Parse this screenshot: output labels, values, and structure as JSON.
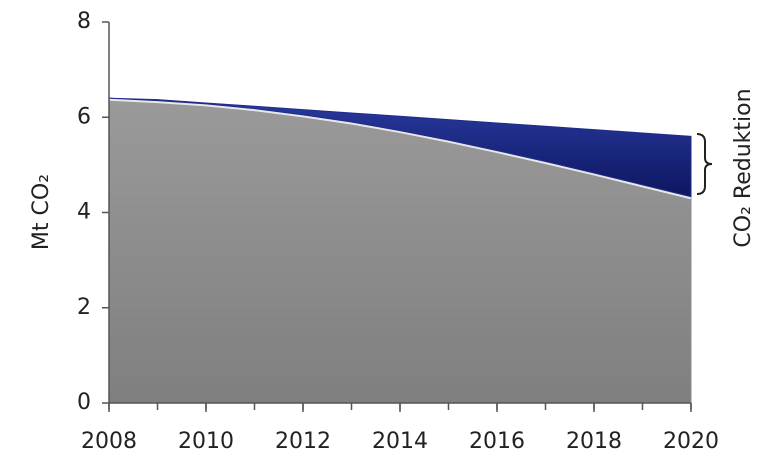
{
  "chart_data": {
    "type": "area",
    "stacked": true,
    "ylabel": "Mt CO₂",
    "annotation": "CO₂ Reduktion",
    "x": [
      2008,
      2009,
      2010,
      2011,
      2012,
      2013,
      2014,
      2015,
      2016,
      2017,
      2018,
      2019,
      2020
    ],
    "xlim": [
      2008,
      2020
    ],
    "xticks": [
      2008,
      2010,
      2012,
      2014,
      2016,
      2018,
      2020
    ],
    "ylim": [
      0,
      8
    ],
    "yticks": [
      0,
      2,
      4,
      6,
      8
    ],
    "series": [
      {
        "color": "#8c8c8c",
        "values": [
          6.4,
          6.35,
          6.28,
          6.18,
          6.05,
          5.9,
          5.72,
          5.52,
          5.3,
          5.07,
          4.83,
          4.58,
          4.33
        ]
      },
      {
        "color": "#1f2d8a",
        "values": [
          0,
          0.02,
          0.02,
          0.05,
          0.11,
          0.19,
          0.3,
          0.43,
          0.58,
          0.74,
          0.91,
          1.09,
          1.27
        ]
      }
    ]
  }
}
